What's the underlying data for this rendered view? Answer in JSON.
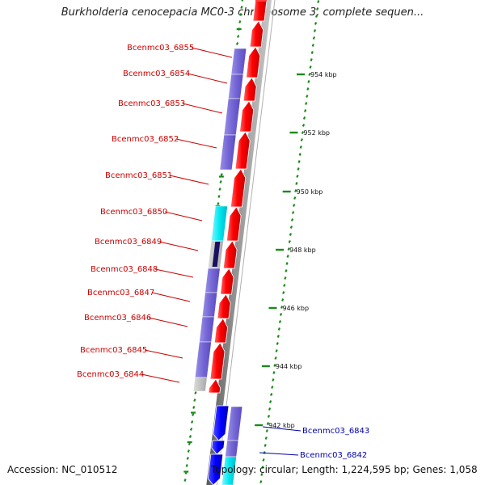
{
  "title": "Burkholderia cenocepacia MC0-3 chromosome 3, complete sequen...",
  "footer": {
    "accession": "Accession: NC_010512",
    "topology": "Topology: circular; Length: 1,224,595 bp; Genes: 1,058"
  },
  "colors": {
    "forward_cds": "#ff0000",
    "reverse_cds": "#0000ff",
    "orthologs": "#7a6fd6",
    "no_ortholog": "#00e5f0",
    "dark_hit": "#1a1060",
    "grey_feature": "#b8b8b8",
    "forward_label": "#cc0000",
    "reverse_label": "#0000aa",
    "ticks": "#1a8a1a",
    "backbone": "#808080"
  },
  "scale_ticks": [
    "954 kbp",
    "952 kbp",
    "950 kbp",
    "948 kbp",
    "946 kbp",
    "944 kbp",
    "942 kbp"
  ],
  "forward_genes": [
    "Bcenmc03_6855",
    "Bcenmc03_6854",
    "Bcenmc03_6853",
    "Bcenmc03_6852",
    "Bcenmc03_6851",
    "Bcenmc03_6850",
    "Bcenmc03_6849",
    "Bcenmc03_6848",
    "Bcenmc03_6847",
    "Bcenmc03_6846",
    "Bcenmc03_6845",
    "Bcenmc03_6844"
  ],
  "reverse_genes": [
    "Bcenmc03_6843",
    "Bcenmc03_6842"
  ]
}
